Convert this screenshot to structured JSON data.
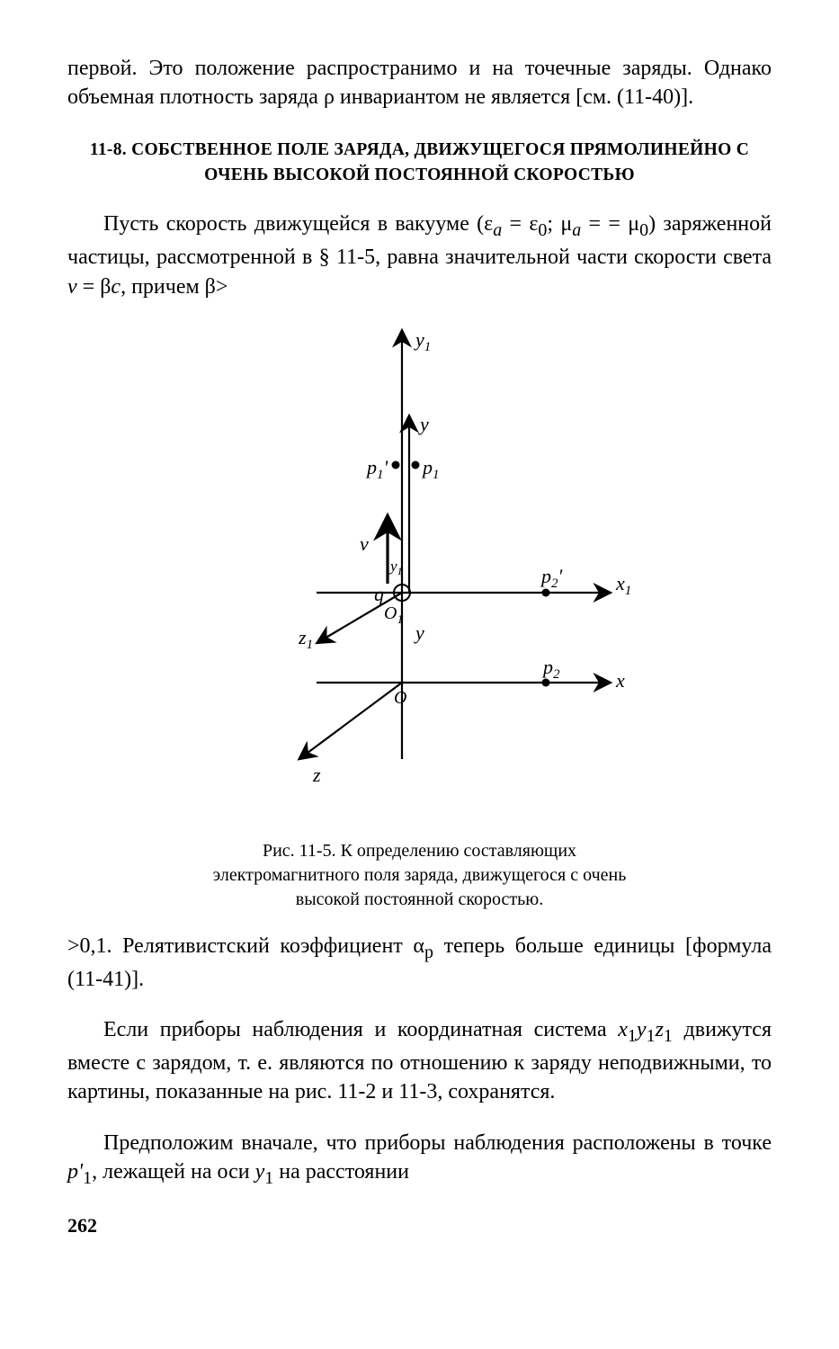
{
  "paragraphs": {
    "p1": "первой. Это положение распространимо и на точечные заряды. Однако объемная плотность заряда ρ инвариан­том не является [см. (11-40)].",
    "heading": "11-8. СОБСТВЕННОЕ ПОЛЕ ЗАРЯДА, ДВИЖУЩЕГОСЯ ПРЯМОЛИНЕЙНО С ОЧЕНЬ ВЫСОКОЙ ПОСТОЯННОЙ СКОРОСТЬЮ",
    "p2_html": "Пусть скорость движущейся в вакууме (ε<sub><i>a</i></sub> = ε<sub>0</sub>; μ<sub><i>a</i></sub> = = μ<sub>0</sub>) заряженной частицы, рассмотренной в § 11-5, рав­на значительной части скорости света <i>v</i> = β<i>c</i>, причем β>",
    "p3_html": ">0,1. Релятивистский коэффициент α<sub>р</sub> теперь больше единицы [формула (11-41)].",
    "p4_html": "Если приборы наблюдения и координатная система <i>x</i><sub>1</sub><i>y</i><sub>1</sub><i>z</i><sub>1</sub> движутся вместе с зарядом, т. е. являются по от­ношению к заряду неподвижными, то картины, показан­ные на рис. 11-2 и 11-3, сохранятся.",
    "p5_html": "Предположим вначале, что приборы наблюдения рас­положены в точке <i>p'</i><sub>1</sub>, лежащей на оси <i>y</i><sub>1</sub> на расстоянии"
  },
  "figure": {
    "caption": "Рис. 11-5. К определению составляю­щих электромагнитного поля заряда, движущегося с очень высокой по­стоянной скоростью.",
    "labels": {
      "y1_top": "y₁",
      "y_small": "y",
      "p1_prime": "p₁'",
      "p1": "p₁",
      "v": "v",
      "y_frame": "y₁",
      "q": "q",
      "O1": "O₁",
      "z1": "z₁",
      "y_bottom": "y",
      "p2_prime": "p₂'",
      "x1": "x₁",
      "p2": "p₂",
      "x": "x",
      "O": "O",
      "z": "z"
    },
    "style": {
      "stroke": "#000000",
      "stroke_width": 2.2,
      "font_size": 22,
      "font_style": "italic",
      "point_radius": 4.5,
      "arrow_marker_size": 11
    }
  },
  "page_number": "262"
}
